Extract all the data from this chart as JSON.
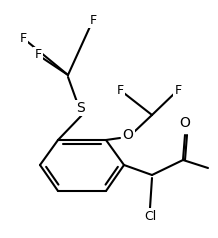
{
  "background_color": "#ffffff",
  "line_color": "#000000",
  "line_width": 1.5,
  "figsize": [
    2.18,
    2.38
  ],
  "dpi": 100,
  "atoms": {
    "S_label": "S",
    "O_label": "O",
    "Cl_label": "Cl",
    "O_ketone_label": "O",
    "F1_label": "F",
    "F2_label": "F",
    "F3_label": "F",
    "F4_label": "F",
    "F5_label": "F"
  }
}
